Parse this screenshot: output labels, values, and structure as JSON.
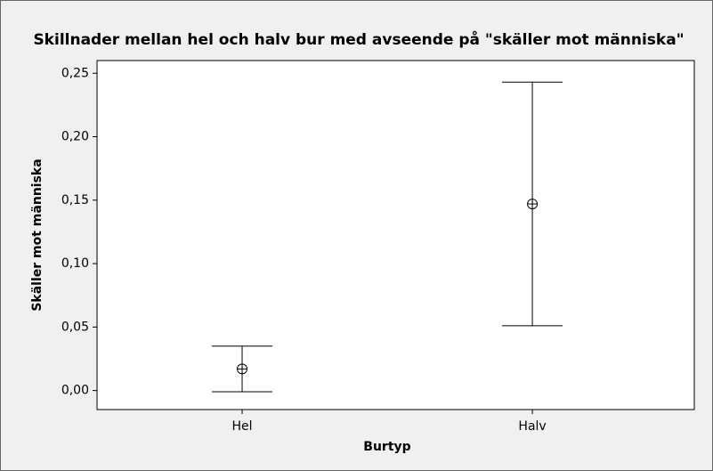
{
  "chart_data": {
    "type": "errorbar",
    "title": "Skillnader mellan hel och halv bur med avseende på \"skäller mot människa\"",
    "xlabel": "Burtyp",
    "ylabel": "Skäller mot människa",
    "categories": [
      "Hel",
      "Halv"
    ],
    "series": [
      {
        "color": "#000000",
        "values": [
          0.017,
          0.147
        ],
        "errors": [
          0.018,
          0.096
        ]
      }
    ],
    "ylim": [
      -0.015,
      0.26
    ],
    "yticks": [
      {
        "value": 0,
        "label": "0,00"
      },
      {
        "value": 0.05,
        "label": "0,05"
      },
      {
        "value": 0.1,
        "label": "0,10"
      },
      {
        "value": 0.15,
        "label": "0,15"
      },
      {
        "value": 0.2,
        "label": "0,20"
      },
      {
        "value": 0.25,
        "label": "0,25"
      }
    ],
    "grid": false
  }
}
